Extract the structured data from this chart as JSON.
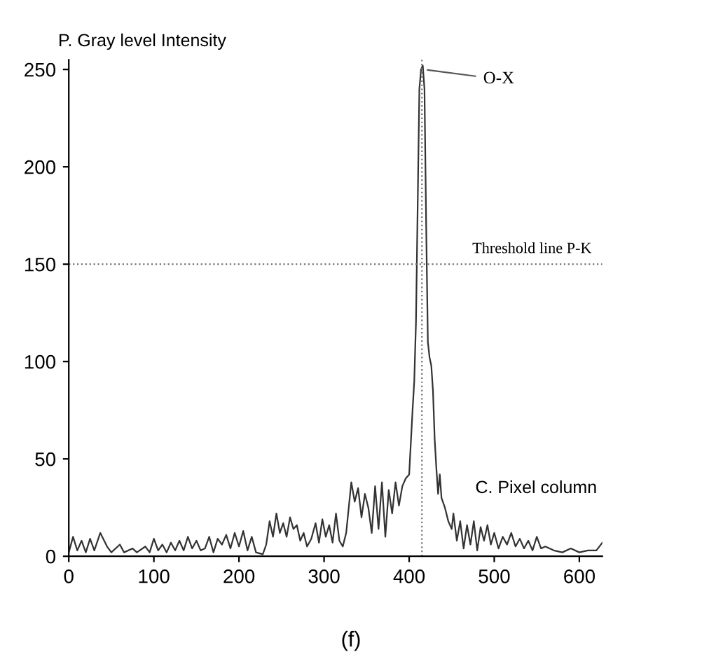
{
  "chart_data": {
    "type": "line",
    "xlabel": "C. Pixel column",
    "ylabel": "P. Gray level Intensity",
    "x": [
      0,
      5,
      10,
      15,
      20,
      25,
      30,
      37,
      45,
      50,
      60,
      65,
      75,
      80,
      90,
      95,
      100,
      105,
      110,
      115,
      120,
      125,
      130,
      135,
      140,
      145,
      150,
      155,
      160,
      165,
      170,
      175,
      180,
      185,
      190,
      195,
      200,
      205,
      210,
      215,
      220,
      228,
      232,
      236,
      240,
      244,
      248,
      252,
      256,
      260,
      264,
      268,
      272,
      276,
      280,
      285,
      290,
      294,
      298,
      302,
      306,
      310,
      314,
      318,
      322,
      326,
      332,
      336,
      340,
      344,
      348,
      352,
      356,
      360,
      364,
      368,
      372,
      376,
      380,
      384,
      388,
      392,
      396,
      400,
      404,
      406,
      408,
      410,
      412,
      414,
      416,
      418,
      420,
      422,
      424,
      426,
      428,
      430,
      432,
      434,
      436,
      438,
      442,
      446,
      450,
      452,
      456,
      460,
      464,
      468,
      472,
      476,
      480,
      484,
      488,
      492,
      496,
      500,
      505,
      510,
      515,
      520,
      525,
      530,
      535,
      540,
      545,
      550,
      555,
      560,
      570,
      580,
      590,
      600,
      610,
      620,
      627
    ],
    "series": [
      {
        "color": "#333333",
        "values": [
          2,
          10,
          3,
          8,
          2,
          9,
          3,
          12,
          5,
          2,
          6,
          2,
          4,
          2,
          5,
          2,
          9,
          3,
          6,
          2,
          7,
          3,
          8,
          3,
          10,
          4,
          8,
          3,
          4,
          10,
          2,
          9,
          6,
          11,
          4,
          12,
          5,
          13,
          3,
          10,
          2,
          1,
          6,
          18,
          10,
          22,
          12,
          17,
          10,
          20,
          14,
          16,
          8,
          12,
          5,
          9,
          17,
          7,
          19,
          10,
          16,
          7,
          22,
          8,
          5,
          12,
          38,
          28,
          35,
          20,
          32,
          25,
          12,
          36,
          14,
          38,
          10,
          34,
          22,
          38,
          26,
          36,
          40,
          42,
          75,
          90,
          120,
          180,
          240,
          250,
          252,
          240,
          170,
          110,
          102,
          98,
          85,
          60,
          45,
          32,
          42,
          30,
          25,
          18,
          14,
          22,
          8,
          18,
          4,
          16,
          6,
          18,
          3,
          15,
          8,
          16,
          6,
          12,
          4,
          10,
          6,
          12,
          5,
          9,
          4,
          8,
          3,
          10,
          4,
          5,
          3,
          2,
          4,
          2,
          3,
          3,
          7
        ]
      }
    ],
    "xlim": [
      0,
      627
    ],
    "ylim": [
      0,
      255
    ],
    "xticks": [
      0,
      100,
      200,
      300,
      400,
      500,
      600
    ],
    "yticks": [
      0,
      50,
      100,
      150,
      200,
      250
    ],
    "grid": false,
    "legend": false,
    "marker": "none",
    "line_style": "solid",
    "ref_lines": [
      {
        "axis": "y",
        "value": 150,
        "label": "Threshold line P-K",
        "line_style": "dotted",
        "color": "#777777"
      },
      {
        "axis": "x",
        "value": 415,
        "line_style": "dotted",
        "color": "#777777"
      }
    ],
    "annotations": [
      {
        "text": "O-X",
        "x": 417,
        "y": 250
      },
      "(f)"
    ]
  }
}
